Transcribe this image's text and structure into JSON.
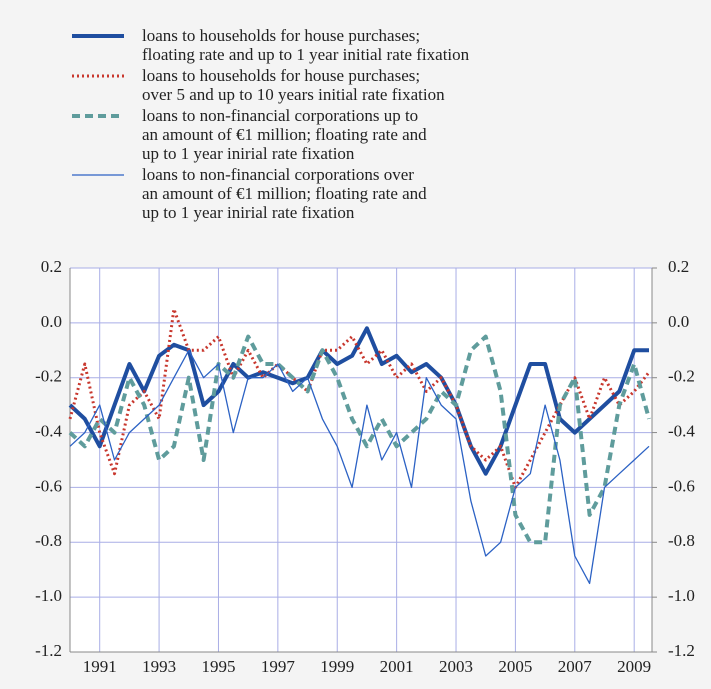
{
  "chart_data": {
    "type": "line",
    "x": [
      1990,
      1990.5,
      1991,
      1991.5,
      1992,
      1992.5,
      1993,
      1993.5,
      1994,
      1994.5,
      1995,
      1995.5,
      1996,
      1996.5,
      1997,
      1997.5,
      1998,
      1998.5,
      1999,
      1999.5,
      2000,
      2000.5,
      2001,
      2001.5,
      2002,
      2002.5,
      2003,
      2003.5,
      2004,
      2004.5,
      2005,
      2005.5,
      2006,
      2006.5,
      2007,
      2007.5,
      2008,
      2008.5,
      2009,
      2009.5
    ],
    "series": [
      {
        "name": "loans to households for house purchases;\nfloating rate and up to 1 year initial rate fixation",
        "color": "#1f4ea0",
        "style": "solid",
        "width": 4,
        "values": [
          -0.3,
          -0.35,
          -0.45,
          -0.3,
          -0.15,
          -0.25,
          -0.12,
          -0.08,
          -0.1,
          -0.3,
          -0.25,
          -0.15,
          -0.2,
          -0.18,
          -0.2,
          -0.22,
          -0.2,
          -0.1,
          -0.15,
          -0.12,
          -0.02,
          -0.15,
          -0.12,
          -0.18,
          -0.15,
          -0.2,
          -0.3,
          -0.45,
          -0.55,
          -0.45,
          -0.3,
          -0.15,
          -0.15,
          -0.35,
          -0.4,
          -0.35,
          -0.3,
          -0.25,
          -0.1,
          -0.1
        ]
      },
      {
        "name": "loans to households for house purchases;\nover 5 and up to 10 years initial rate fixation",
        "color": "#c8372d",
        "style": "dotted",
        "width": 3,
        "values": [
          -0.35,
          -0.15,
          -0.4,
          -0.55,
          -0.3,
          -0.25,
          -0.35,
          0.05,
          -0.1,
          -0.1,
          -0.05,
          -0.2,
          -0.1,
          -0.2,
          -0.15,
          -0.2,
          -0.25,
          -0.1,
          -0.1,
          -0.05,
          -0.15,
          -0.1,
          -0.2,
          -0.15,
          -0.25,
          -0.2,
          -0.3,
          -0.45,
          -0.5,
          -0.45,
          -0.6,
          -0.5,
          -0.4,
          -0.3,
          -0.2,
          -0.35,
          -0.2,
          -0.3,
          -0.25,
          -0.18
        ]
      },
      {
        "name": "loans to non-financial corporations up to\nan amount of €1 million; floating rate and\nup to 1 year inirial rate fixation",
        "color": "#5f9c9c",
        "style": "dashed",
        "width": 4,
        "values": [
          -0.4,
          -0.45,
          -0.35,
          -0.4,
          -0.2,
          -0.3,
          -0.5,
          -0.45,
          -0.2,
          -0.5,
          -0.15,
          -0.2,
          -0.05,
          -0.15,
          -0.15,
          -0.2,
          -0.25,
          -0.1,
          -0.2,
          -0.35,
          -0.45,
          -0.35,
          -0.45,
          -0.4,
          -0.35,
          -0.25,
          -0.3,
          -0.1,
          -0.05,
          -0.25,
          -0.7,
          -0.8,
          -0.8,
          -0.3,
          -0.2,
          -0.7,
          -0.6,
          -0.3,
          -0.15,
          -0.35
        ]
      },
      {
        "name": "loans to non-financial corporations over\nan amount of €1 million; floating rate and\nup to 1 year inirial rate fixation",
        "color": "#2c62c4",
        "style": "solid",
        "width": 1.3,
        "values": [
          -0.45,
          -0.4,
          -0.3,
          -0.5,
          -0.4,
          -0.35,
          -0.3,
          -0.2,
          -0.1,
          -0.2,
          -0.15,
          -0.4,
          -0.2,
          -0.2,
          -0.15,
          -0.25,
          -0.2,
          -0.35,
          -0.45,
          -0.6,
          -0.3,
          -0.5,
          -0.4,
          -0.6,
          -0.2,
          -0.3,
          -0.35,
          -0.65,
          -0.85,
          -0.8,
          -0.6,
          -0.55,
          -0.3,
          -0.5,
          -0.85,
          -0.95,
          -0.6,
          -0.55,
          -0.5,
          -0.45
        ]
      }
    ],
    "xlim": [
      1990,
      2009.6
    ],
    "xticks": [
      1991,
      1993,
      1995,
      1997,
      1999,
      2001,
      2003,
      2005,
      2007,
      2009
    ],
    "ylim": [
      -1.2,
      0.2
    ],
    "yticks": [
      0.2,
      {
        "value": 0,
        "label": "0.0"
      },
      -0.2,
      -0.4,
      -0.6,
      -0.8,
      {
        "value": -1,
        "label": "-1.0"
      },
      -1.2
    ],
    "y2lim": [
      -1.2,
      0.2
    ],
    "y2ticks": [
      0.2,
      {
        "value": 0,
        "label": "0.0"
      },
      -0.2,
      -0.4,
      -0.6,
      -0.8,
      {
        "value": -1,
        "label": "-1.0"
      },
      -1.2
    ],
    "grid": true
  }
}
